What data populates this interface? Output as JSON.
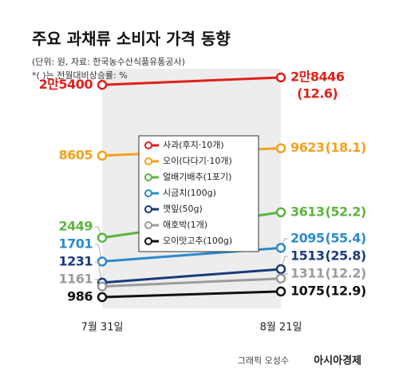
{
  "chart_data": {
    "type": "slope",
    "title": "주요 과채류 소비자 가격 동향",
    "subtitle": [
      "(단위: 원, 자료: 한국농수산식품유통공사)",
      "*( )는 전월대비상승률: %"
    ],
    "categories": [
      "7월 31일",
      "8월 21일"
    ],
    "series": [
      {
        "name": "사과(후지·10개)",
        "color": "#e0201b",
        "values": [
          25400,
          28446
        ],
        "value_labels": [
          "2만5400",
          "2만8446"
        ],
        "change": 12.6,
        "change_label": "(12.6)"
      },
      {
        "name": "오이(다다기·10개)",
        "color": "#f4a11e",
        "values": [
          8605,
          9623
        ],
        "change": 18.1,
        "change_label": "(18.1)"
      },
      {
        "name": "얼배기배추(1포기)",
        "color": "#5cb43e",
        "values": [
          2449,
          3613
        ],
        "change": 52.2,
        "change_label": "(52.2)"
      },
      {
        "name": "시금치(100g)",
        "color": "#2a8bcb",
        "values": [
          1701,
          2095
        ],
        "change": 55.4,
        "change_label": "(55.4)"
      },
      {
        "name": "깻잎(50g)",
        "color": "#1b3a7a",
        "values": [
          1231,
          1513
        ],
        "change": 25.8,
        "change_label": "(25.8)"
      },
      {
        "name": "애호박(1개)",
        "color": "#9b9b9b",
        "values": [
          1161,
          1311
        ],
        "change": 12.2,
        "change_label": "(12.2)"
      },
      {
        "name": "오이맛고추(100g)",
        "color": "#111111",
        "values": [
          986,
          1075
        ],
        "change": 12.9,
        "change_label": "(12.9)"
      }
    ]
  },
  "footer": {
    "credit": "그래픽 오성수",
    "brand": "아시아경제"
  }
}
